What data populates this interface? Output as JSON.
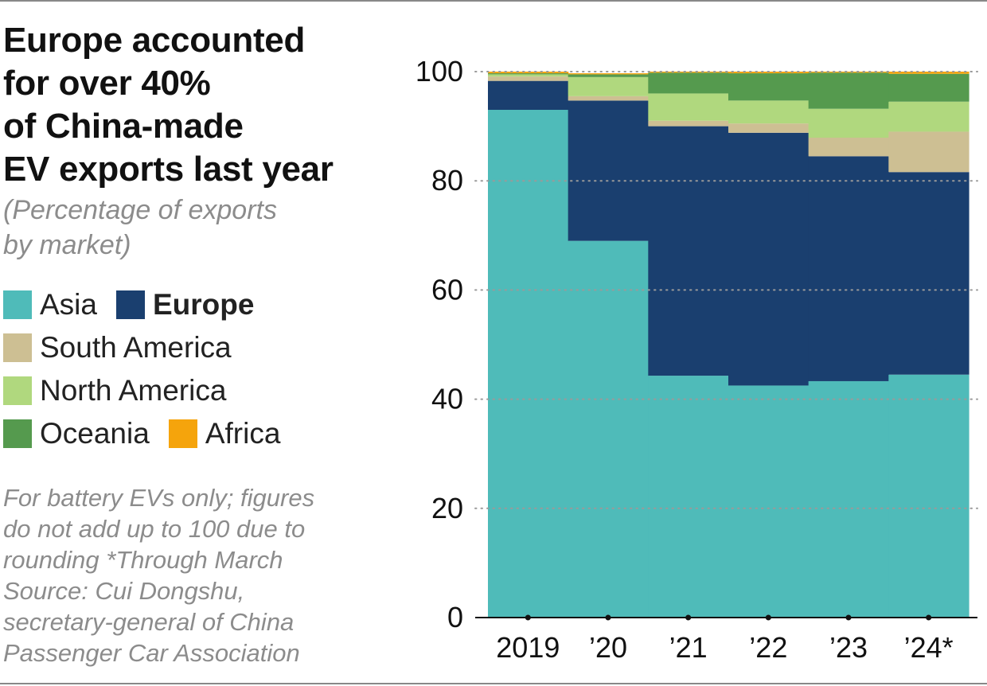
{
  "title": "Europe accounted for over 40% of China-made EV exports last year",
  "title_lines": [
    "Europe accounted",
    "for over 40%",
    "of China-made",
    "EV exports last year"
  ],
  "subtitle_lines": [
    "(Percentage of exports",
    "by market)"
  ],
  "legend": [
    {
      "label": "Asia",
      "color": "#4fbbb9",
      "bold": false
    },
    {
      "label": "Europe",
      "color": "#1a3f6f",
      "bold": true
    },
    {
      "label": "South America",
      "color": "#cdbf93",
      "bold": false
    },
    {
      "label": "North America",
      "color": "#b0d87e",
      "bold": false
    },
    {
      "label": "Oceania",
      "color": "#559a4e",
      "bold": false
    },
    {
      "label": "Africa",
      "color": "#f5a40c",
      "bold": false
    }
  ],
  "note_lines": [
    "For battery EVs only; figures",
    "do not add up to 100 due to",
    "rounding  *Through March",
    "Source: Cui Dongshu,",
    "secretary-general of China",
    "Passenger Car Association"
  ],
  "chart_data": {
    "type": "bar",
    "stacked": true,
    "categories": [
      "2019",
      "’20",
      "’21",
      "’22",
      "’23",
      "’24*"
    ],
    "series": [
      {
        "name": "Asia",
        "color": "#4fbbb9",
        "values": [
          93,
          69,
          44.3,
          42.5,
          43.3,
          44.5
        ]
      },
      {
        "name": "Europe",
        "color": "#1a3f6f",
        "values": [
          5.3,
          25.7,
          45.7,
          46.3,
          41.2,
          37.1
        ]
      },
      {
        "name": "South America",
        "color": "#cdbf93",
        "values": [
          0.8,
          0.8,
          1.0,
          1.7,
          3.4,
          7.4
        ]
      },
      {
        "name": "North America",
        "color": "#b0d87e",
        "values": [
          0.4,
          3.5,
          5.0,
          4.2,
          5.3,
          5.5
        ]
      },
      {
        "name": "Oceania",
        "color": "#559a4e",
        "values": [
          0.2,
          0.5,
          3.8,
          5.0,
          6.6,
          5.1
        ]
      },
      {
        "name": "Africa",
        "color": "#f5a40c",
        "values": [
          0.3,
          0.2,
          0.2,
          0.3,
          0.2,
          0.4
        ]
      }
    ],
    "y_ticks": [
      "0",
      "20",
      "40",
      "60",
      "80",
      "100"
    ],
    "ylim": [
      0,
      100
    ],
    "grid": true,
    "grid_style": "dotted"
  }
}
